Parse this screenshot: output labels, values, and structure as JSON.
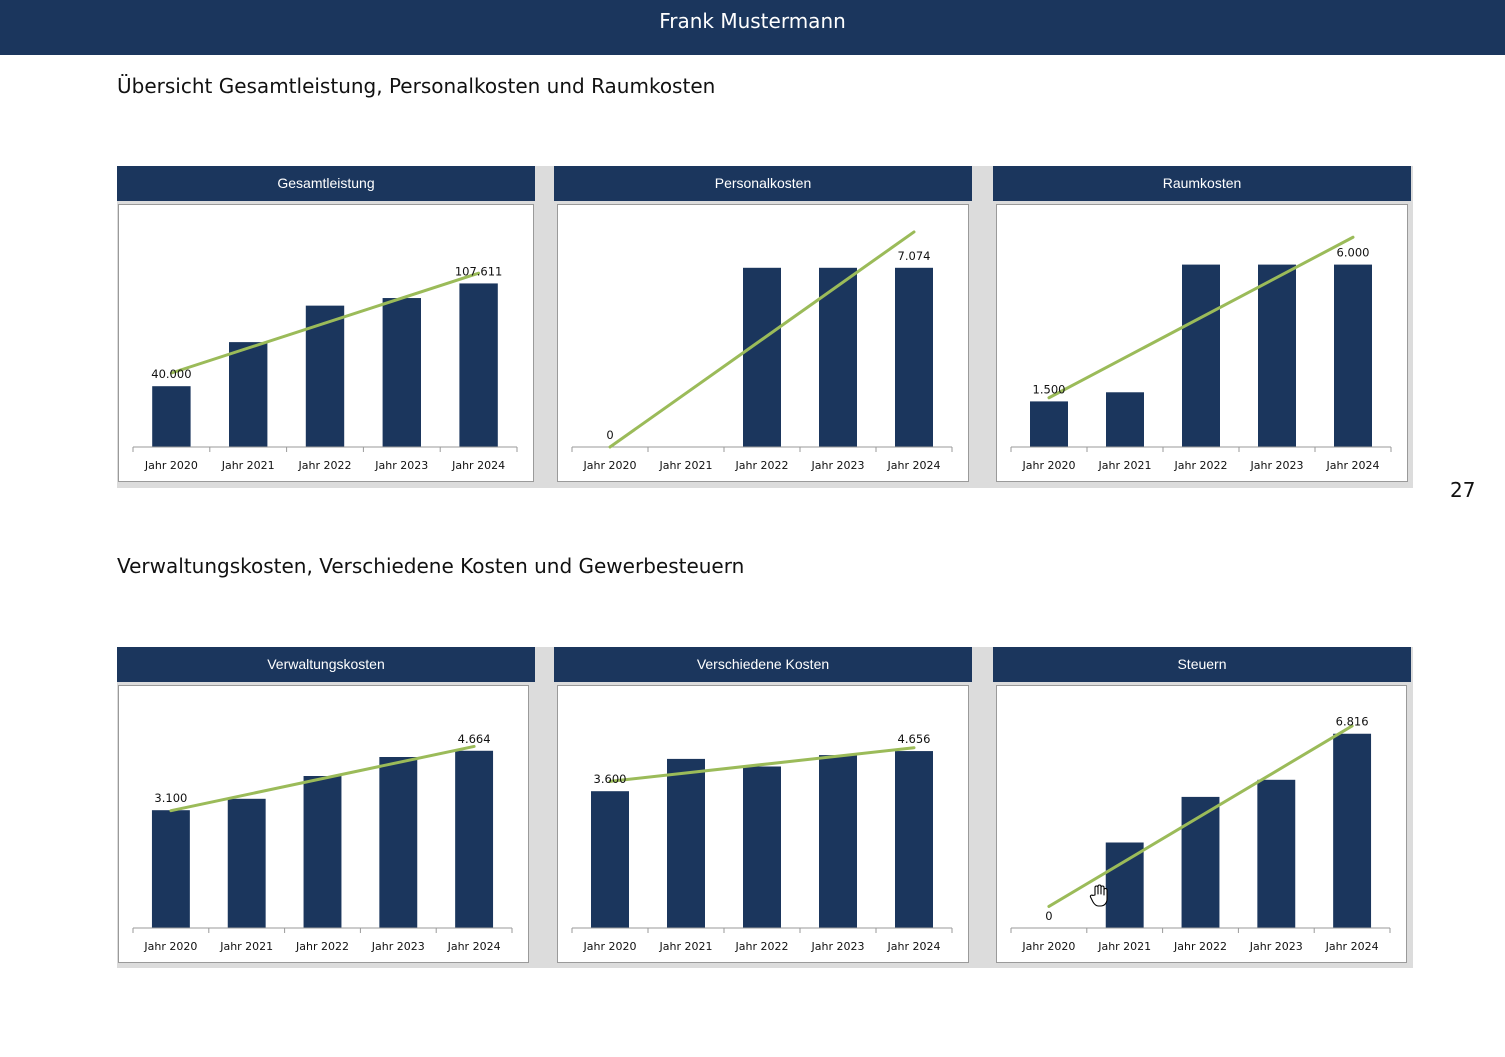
{
  "header": {
    "name": "Frank Mustermann"
  },
  "sections": [
    {
      "title": "Übersicht Gesamtleistung, Personalkosten und Raumkosten"
    },
    {
      "title": "Verwaltungskosten, Verschiedene Kosten und Gewerbesteuern"
    }
  ],
  "page_number": "27",
  "colors": {
    "bar": "#1b365d",
    "trend": "#9bbb59",
    "header": "#1b365d",
    "panel_bg": "#dcdcdc"
  },
  "chart_data": [
    {
      "type": "bar",
      "title": "Gesamtleistung",
      "categories": [
        "Jahr 2020",
        "Jahr 2021",
        "Jahr 2022",
        "Jahr 2023",
        "Jahr 2024"
      ],
      "values": [
        40000,
        69000,
        93000,
        98000,
        107611
      ],
      "trendline": true,
      "ylim": [
        0,
        150000
      ],
      "data_labels": [
        {
          "index": 0,
          "text": "40.000"
        },
        {
          "index": 4,
          "text": "107.611"
        }
      ]
    },
    {
      "type": "bar",
      "title": "Personalkosten",
      "categories": [
        "Jahr 2020",
        "Jahr 2021",
        "Jahr 2022",
        "Jahr 2023",
        "Jahr 2024"
      ],
      "values": [
        0,
        0,
        7074,
        7074,
        7074
      ],
      "trendline": true,
      "ylim": [
        0,
        9000
      ],
      "data_labels": [
        {
          "index": 0,
          "text": "0"
        },
        {
          "index": 4,
          "text": "7.074"
        }
      ]
    },
    {
      "type": "bar",
      "title": "Raumkosten",
      "categories": [
        "Jahr 2020",
        "Jahr 2021",
        "Jahr 2022",
        "Jahr 2023",
        "Jahr 2024"
      ],
      "values": [
        1500,
        1800,
        6000,
        6000,
        6000
      ],
      "trendline": true,
      "ylim": [
        0,
        7500
      ],
      "data_labels": [
        {
          "index": 0,
          "text": "1.500"
        },
        {
          "index": 4,
          "text": "6.000"
        }
      ]
    },
    {
      "type": "bar",
      "title": "Verwaltungskosten",
      "categories": [
        "Jahr 2020",
        "Jahr 2021",
        "Jahr 2022",
        "Jahr 2023",
        "Jahr 2024"
      ],
      "values": [
        3100,
        3400,
        4000,
        4500,
        4664
      ],
      "trendline": true,
      "ylim": [
        0,
        6000
      ],
      "data_labels": [
        {
          "index": 0,
          "text": "3.100"
        },
        {
          "index": 4,
          "text": "4.664"
        }
      ]
    },
    {
      "type": "bar",
      "title": "Verschiedene Kosten",
      "categories": [
        "Jahr 2020",
        "Jahr 2021",
        "Jahr 2022",
        "Jahr 2023",
        "Jahr 2024"
      ],
      "values": [
        3600,
        4450,
        4250,
        4550,
        4656
      ],
      "trendline": true,
      "ylim": [
        0,
        6000
      ],
      "data_labels": [
        {
          "index": 0,
          "text": "3.600"
        },
        {
          "index": 4,
          "text": "4.656"
        }
      ]
    },
    {
      "type": "bar",
      "title": "Steuern",
      "categories": [
        "Jahr 2020",
        "Jahr 2021",
        "Jahr 2022",
        "Jahr 2023",
        "Jahr 2024"
      ],
      "values": [
        0,
        3000,
        4600,
        5200,
        6816
      ],
      "trendline": true,
      "ylim": [
        0,
        8000
      ],
      "data_labels": [
        {
          "index": 0,
          "text": "0"
        },
        {
          "index": 4,
          "text": "6.816"
        }
      ]
    }
  ]
}
